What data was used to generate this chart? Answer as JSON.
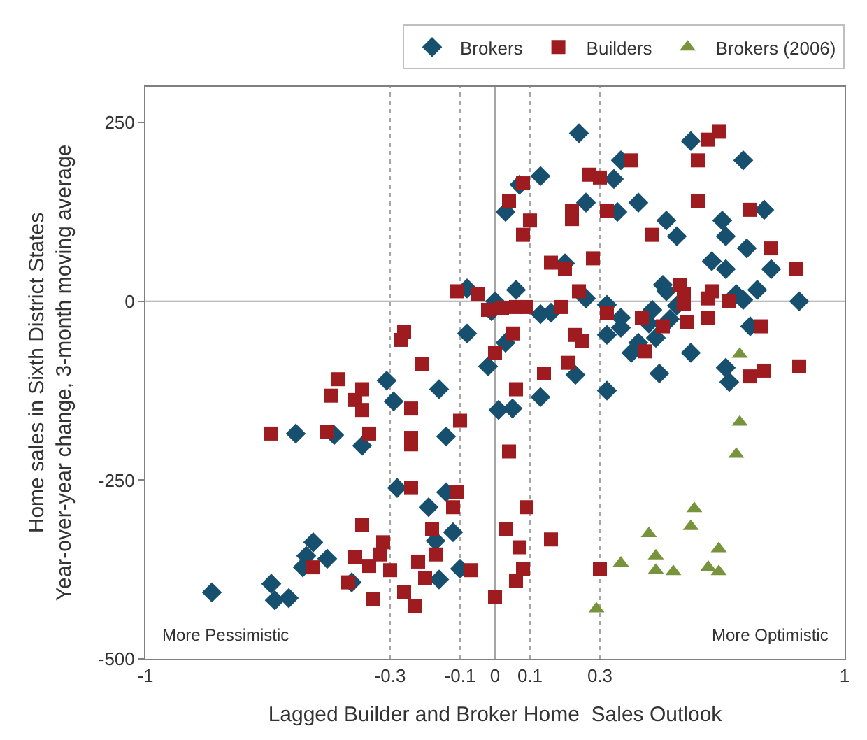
{
  "chart_data": {
    "type": "scatter",
    "xlabel": "Lagged Builder and Broker Home  Sales Outlook",
    "ylabel": "Home sales in Sixth District States\nYear-over-year change, 3-month moving average",
    "xlim": [
      -1,
      1
    ],
    "xticks": [
      -1,
      -0.3,
      -0.1,
      0,
      0.1,
      0.3,
      1
    ],
    "ylim": [
      -500,
      300
    ],
    "yticks": [
      -500,
      -250,
      0,
      250
    ],
    "grid": false,
    "legend": "top right",
    "annotations": [
      "More Pessimistic",
      "More Optimistic"
    ],
    "ref_lines": [
      {
        "axis": "x",
        "value": -0.3,
        "color": "#a6a6a6",
        "line_style": "dotted"
      },
      {
        "axis": "x",
        "value": -0.1,
        "color": "#a6a6a6",
        "line_style": "dotted"
      },
      {
        "axis": "x",
        "value": 0.1,
        "color": "#a6a6a6",
        "line_style": "dotted"
      },
      {
        "axis": "x",
        "value": 0.3,
        "color": "#a6a6a6",
        "line_style": "dotted"
      },
      {
        "axis": "x",
        "value": 0,
        "color": "#a6a6a6",
        "line_style": "solid"
      },
      {
        "axis": "y",
        "value": 0,
        "color": "#a6a6a6",
        "line_style": "solid"
      }
    ],
    "series": [
      {
        "name": "Brokers",
        "color": "#17506e",
        "marker": "diamond",
        "x": [
          -0.81,
          -0.64,
          -0.63,
          -0.59,
          -0.55,
          -0.54,
          -0.52,
          -0.48,
          -0.41,
          -0.57,
          -0.46,
          -0.38,
          -0.31,
          -0.29,
          -0.16,
          -0.14,
          -0.28,
          -0.14,
          -0.19,
          -0.12,
          -0.17,
          -0.1,
          -0.16,
          -0.08,
          -0.08,
          -0.02,
          0.24,
          0.36,
          0.13,
          0.07,
          0.34,
          0.03,
          0.26,
          0.35,
          0.41,
          0.49,
          0.52,
          0.56,
          0.71,
          0.65,
          0.66,
          0.77,
          0.72,
          0.62,
          0.66,
          0.79,
          0.2,
          0.06,
          0.0,
          -0.01,
          0.26,
          0.48,
          0.49,
          0.52,
          0.69,
          0.71,
          0.75,
          0.87,
          0.13,
          0.16,
          0.32,
          0.36,
          0.36,
          0.32,
          0.44,
          0.45,
          0.5,
          0.46,
          0.39,
          0.41,
          0.56,
          0.73,
          0.66,
          0.03,
          0.23,
          0.01,
          0.05,
          0.13,
          0.32,
          0.47,
          0.67
        ],
        "values": [
          -407,
          -395,
          -418,
          -415,
          -372,
          -356,
          -337,
          -360,
          -393,
          -185,
          -187,
          -202,
          -111,
          -140,
          -123,
          -189,
          -261,
          -267,
          -288,
          -323,
          -335,
          -374,
          -389,
          18,
          -45,
          -91,
          235,
          197,
          175,
          163,
          171,
          125,
          138,
          125,
          138,
          113,
          91,
          224,
          197,
          113,
          91,
          128,
          74,
          56,
          45,
          45,
          53,
          16,
          0,
          -14,
          4,
          23,
          14,
          -6,
          10,
          2,
          16,
          0,
          -18,
          -16,
          -5,
          -23,
          -37,
          -47,
          -31,
          -12,
          -25,
          -51,
          -72,
          -58,
          -72,
          -35,
          -93,
          -58,
          -103,
          -152,
          -150,
          -134,
          -125,
          -101,
          -113
        ]
      },
      {
        "name": "Builders",
        "color": "#9e1b20",
        "marker": "square",
        "x": [
          -0.45,
          -0.47,
          -0.38,
          -0.4,
          -0.38,
          -0.24,
          -0.1,
          -0.64,
          -0.48,
          -0.36,
          -0.24,
          -0.24,
          -0.24,
          -0.11,
          -0.12,
          -0.38,
          -0.18,
          -0.32,
          -0.33,
          -0.4,
          -0.36,
          -0.3,
          -0.52,
          -0.22,
          -0.17,
          -0.42,
          -0.2,
          -0.07,
          -0.35,
          -0.26,
          -0.23,
          -0.21,
          -0.11,
          -0.05,
          -0.02,
          -0.26,
          -0.27,
          0.08,
          0.04,
          0.1,
          0.08,
          0.22,
          0.22,
          0.27,
          0.3,
          0.39,
          0.32,
          0.58,
          0.61,
          0.64,
          0.58,
          0.73,
          0.79,
          0.86,
          0.45,
          0.16,
          0.2,
          0.28,
          0.24,
          0.19,
          0.32,
          0.06,
          0.02,
          0.09,
          0.53,
          0.54,
          0.54,
          0.62,
          0.61,
          0.67,
          0.42,
          0.48,
          0.55,
          0.61,
          0.76,
          0.23,
          0.25,
          0.05,
          0.0,
          0.43,
          0.21,
          0.14,
          0.77,
          0.87,
          0.73,
          0.06,
          0.04,
          0.09,
          0.03,
          0.07,
          0.08,
          0.06,
          0.16,
          0.0,
          0.3
        ],
        "values": [
          -109,
          -132,
          -123,
          -138,
          -152,
          -150,
          -167,
          -185,
          -183,
          -185,
          -191,
          -200,
          -261,
          -267,
          -288,
          -313,
          -319,
          -337,
          -354,
          -358,
          -370,
          -376,
          -372,
          -364,
          -354,
          -393,
          -387,
          -376,
          -416,
          -407,
          -426,
          -88,
          14,
          10,
          -12,
          -43,
          -54,
          165,
          140,
          113,
          93,
          126,
          115,
          177,
          173,
          197,
          126,
          197,
          226,
          237,
          140,
          128,
          74,
          45,
          93,
          54,
          45,
          60,
          14,
          -8,
          -16,
          -8,
          -10,
          -8,
          23,
          10,
          -4,
          14,
          4,
          0,
          -23,
          -35,
          -29,
          -23,
          -35,
          -47,
          -56,
          -45,
          -72,
          -70,
          -86,
          -101,
          -97,
          -91,
          -105,
          -123,
          -210,
          -288,
          -319,
          -344,
          -374,
          -391,
          -333,
          -413,
          -374
        ]
      },
      {
        "name": "Brokers (2006)",
        "color": "#77933c",
        "marker": "triangle",
        "x": [
          0.7,
          0.7,
          0.69,
          0.57,
          0.56,
          0.44,
          0.46,
          0.46,
          0.51,
          0.64,
          0.61,
          0.64,
          0.36,
          0.29
        ],
        "values": [
          -74,
          -169,
          -214,
          -290,
          -315,
          -325,
          -356,
          -376,
          -378,
          -346,
          -372,
          -378,
          -366,
          -430
        ]
      }
    ]
  }
}
